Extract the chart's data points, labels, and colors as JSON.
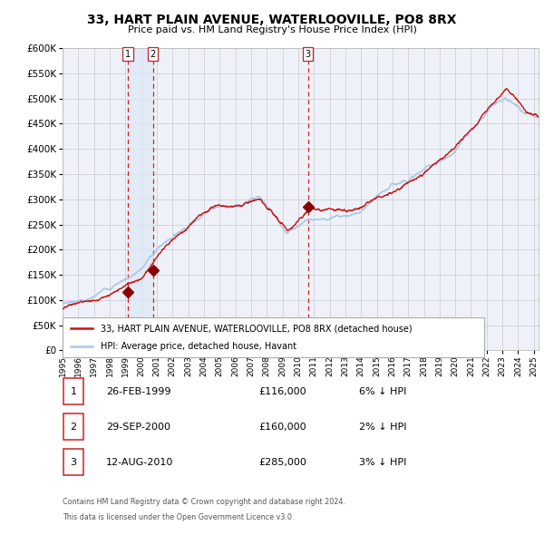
{
  "title": "33, HART PLAIN AVENUE, WATERLOOVILLE, PO8 8RX",
  "subtitle": "Price paid vs. HM Land Registry's House Price Index (HPI)",
  "legend_house": "33, HART PLAIN AVENUE, WATERLOOVILLE, PO8 8RX (detached house)",
  "legend_hpi": "HPI: Average price, detached house, Havant",
  "footer1": "Contains HM Land Registry data © Crown copyright and database right 2024.",
  "footer2": "This data is licensed under the Open Government Licence v3.0.",
  "transactions": [
    {
      "num": 1,
      "date": "26-FEB-1999",
      "price": "£116,000",
      "pct": "6% ↓ HPI"
    },
    {
      "num": 2,
      "date": "29-SEP-2000",
      "price": "£160,000",
      "pct": "2% ↓ HPI"
    },
    {
      "num": 3,
      "date": "12-AUG-2010",
      "price": "£285,000",
      "pct": "3% ↓ HPI"
    }
  ],
  "sale_years": [
    1999.15,
    2000.75,
    2010.62
  ],
  "sale_prices": [
    116000,
    160000,
    285000
  ],
  "hpi_color": "#aac8e8",
  "house_color": "#cc1111",
  "marker_color": "#880000",
  "vline_color": "#cc2222",
  "shade_color": "#dce8f5",
  "bg_color": "#eef2f8",
  "grid_color": "#c8c8d8",
  "ylim": [
    0,
    600000
  ],
  "yticks": [
    0,
    50000,
    100000,
    150000,
    200000,
    250000,
    300000,
    350000,
    400000,
    450000,
    500000,
    550000,
    600000
  ],
  "xlim_start": 1995,
  "xlim_end": 2025.3,
  "box_color": "#cc2222"
}
